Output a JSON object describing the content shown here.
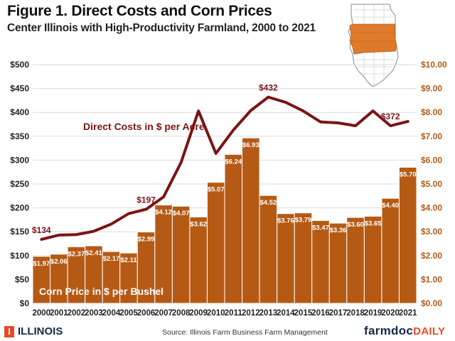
{
  "title": "Figure 1. Direct Costs and Corn Prices",
  "subtitle": "Center Illinois with High-Productivity Farmland, 2000 to 2021",
  "footer": {
    "logo_text": "ILLINOIS",
    "logo_mark": "I",
    "source": "Source:  Illinois  Farm Business Farm Management",
    "brand_main": "farmdoc",
    "brand_accent": "DAILY"
  },
  "map": {
    "icon": "illinois-map-icon",
    "highlight_color": "#e07a2a"
  },
  "colors": {
    "bar": "#b55a14",
    "bar_edge": "#ffffff",
    "line": "#7b1416",
    "plot_bg": "#ffffff",
    "grid": "#d9d9d9",
    "right_axis_text": "#b55a14"
  },
  "chart_data": {
    "type": "bar+line",
    "categories": [
      "2000",
      "2001",
      "2002",
      "2003",
      "2004",
      "2005",
      "2006",
      "2007",
      "2008",
      "2009",
      "2010",
      "2011",
      "2012",
      "2013",
      "2014",
      "2015",
      "2016",
      "2017",
      "2018",
      "2019",
      "2020",
      "2021"
    ],
    "series": [
      {
        "name": "Corn Price in $ per Bushel",
        "type": "bar",
        "axis": "right",
        "values": [
          1.97,
          2.06,
          2.37,
          2.41,
          2.17,
          2.11,
          2.99,
          4.12,
          4.07,
          3.62,
          5.07,
          6.24,
          6.93,
          4.52,
          3.76,
          3.79,
          3.47,
          3.36,
          3.6,
          3.65,
          4.4,
          5.7
        ],
        "labels": [
          "$1.97",
          "$2.06",
          "$2.37",
          "$2.41",
          "$2.17",
          "$2.11",
          "$2.99",
          "$4.12",
          "$4.07",
          "$3.62",
          "$5.07",
          "$6.24",
          "$6.93",
          "$4.52",
          "$3.76",
          "$3.79",
          "$3.47",
          "$3.36",
          "$3.60",
          "$3.65",
          "$4.40",
          "$5.70"
        ]
      },
      {
        "name": "Direct Costs in $ per Acre",
        "type": "line",
        "axis": "left",
        "values": [
          134,
          143,
          144,
          151,
          166,
          188,
          197,
          223,
          295,
          403,
          314,
          363,
          404,
          432,
          421,
          403,
          380,
          378,
          372,
          403,
          372,
          381
        ],
        "point_labels": [
          {
            "index": 0,
            "text": "$134"
          },
          {
            "index": 6,
            "text": "$197"
          },
          {
            "index": 13,
            "text": "$432"
          },
          {
            "index": 20,
            "text": "$372"
          }
        ]
      }
    ],
    "y_left": {
      "ylim": [
        0,
        500
      ],
      "ticks": [
        "$0",
        "$50",
        "$100",
        "$150",
        "$200",
        "$250",
        "$300",
        "$350",
        "$400",
        "$450",
        "$500"
      ]
    },
    "y_right": {
      "ylim": [
        0,
        10
      ],
      "ticks": [
        "$0.00",
        "$1.00",
        "$2.00",
        "$3.00",
        "$4.00",
        "$5.00",
        "$6.00",
        "$7.00",
        "$8.00",
        "$9.00",
        "$10.00"
      ]
    },
    "legend_in_chart": {
      "line_label": "Direct Costs in $ per Acre",
      "bar_label": "Corn Price in $ per Bushel"
    }
  }
}
